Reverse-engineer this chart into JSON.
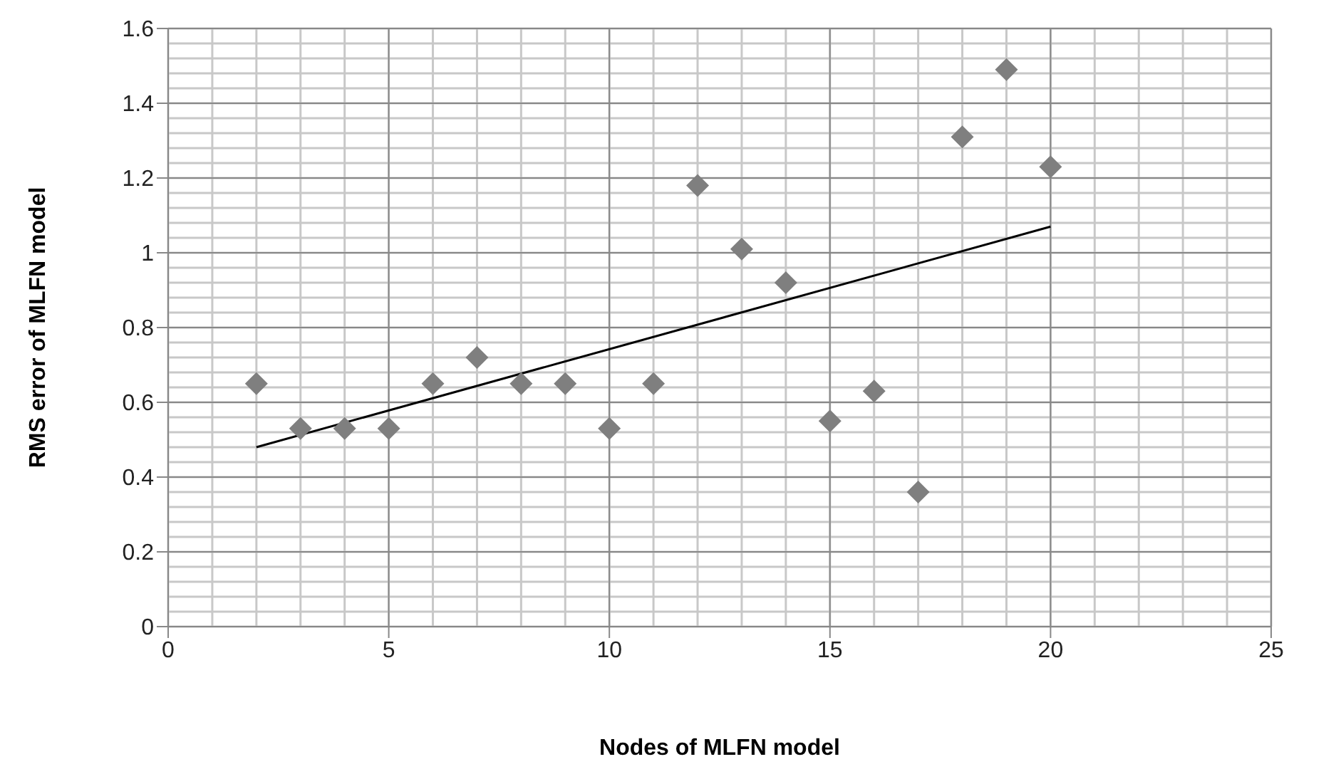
{
  "chart_data": {
    "type": "scatter",
    "xlabel": "Nodes of MLFN model",
    "ylabel": "RMS error of MLFN model",
    "xlim": [
      0,
      25
    ],
    "xticks": [
      0,
      5,
      10,
      15,
      20,
      25
    ],
    "ylim": [
      0,
      1.6
    ],
    "yticks": [
      0,
      0.2,
      0.4,
      0.6,
      0.8,
      1,
      1.2,
      1.4,
      1.6
    ],
    "grid": true,
    "series": [
      {
        "type": "scatter",
        "marker": "diamond",
        "color": "#7f7f7f",
        "x": [
          2,
          3,
          4,
          5,
          6,
          7,
          8,
          9,
          10,
          11,
          12,
          13,
          14,
          15,
          16,
          17,
          18,
          19,
          20
        ],
        "values": [
          0.65,
          0.53,
          0.53,
          0.53,
          0.65,
          0.72,
          0.65,
          0.65,
          0.53,
          0.65,
          1.18,
          1.01,
          0.92,
          0.55,
          0.63,
          0.36,
          1.31,
          1.49,
          1.23
        ]
      },
      {
        "type": "line",
        "marker": "none",
        "color": "#000000",
        "x": [
          2,
          20
        ],
        "values": [
          0.48,
          1.07
        ]
      }
    ]
  }
}
